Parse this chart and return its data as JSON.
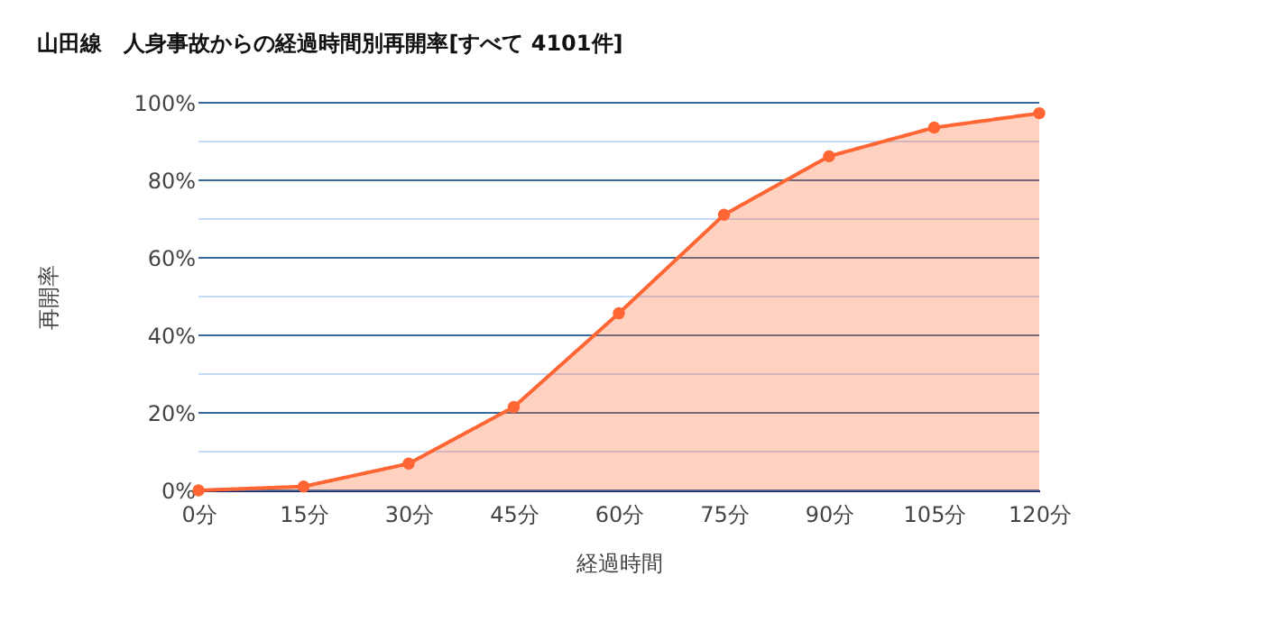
{
  "chart_data": {
    "type": "area",
    "title": "山田線　人身事故からの経過時間別再開率[すべて 4101件]",
    "xlabel": "経過時間",
    "ylabel": "再開率",
    "x": [
      0,
      15,
      30,
      45,
      60,
      75,
      90,
      105,
      120
    ],
    "series": [
      {
        "color": "#ff6633",
        "values": [
          0,
          1,
          6.9,
          21.5,
          45.7,
          71.1,
          86.2,
          93.6,
          97.3
        ]
      }
    ],
    "xlim": [
      0,
      120
    ],
    "xticks": [
      {
        "value": 0,
        "label": "0分"
      },
      {
        "value": 15,
        "label": "15分"
      },
      {
        "value": 30,
        "label": "30分"
      },
      {
        "value": 45,
        "label": "45分"
      },
      {
        "value": 60,
        "label": "60分"
      },
      {
        "value": 75,
        "label": "75分"
      },
      {
        "value": 90,
        "label": "90分"
      },
      {
        "value": 105,
        "label": "105分"
      },
      {
        "value": 120,
        "label": "120分"
      }
    ],
    "ylim": [
      0,
      100
    ],
    "yticks": [
      {
        "value": 0,
        "label": "0%"
      },
      {
        "value": 10,
        "label": null
      },
      {
        "value": 20,
        "label": "20%"
      },
      {
        "value": 30,
        "label": null
      },
      {
        "value": 40,
        "label": "40%"
      },
      {
        "value": 50,
        "label": null
      },
      {
        "value": 60,
        "label": "60%"
      },
      {
        "value": 70,
        "label": null
      },
      {
        "value": 80,
        "label": "80%"
      },
      {
        "value": 90,
        "label": null
      },
      {
        "value": 100,
        "label": "100%"
      }
    ],
    "grid": "y",
    "marker": "circle",
    "line_style": "solid"
  }
}
